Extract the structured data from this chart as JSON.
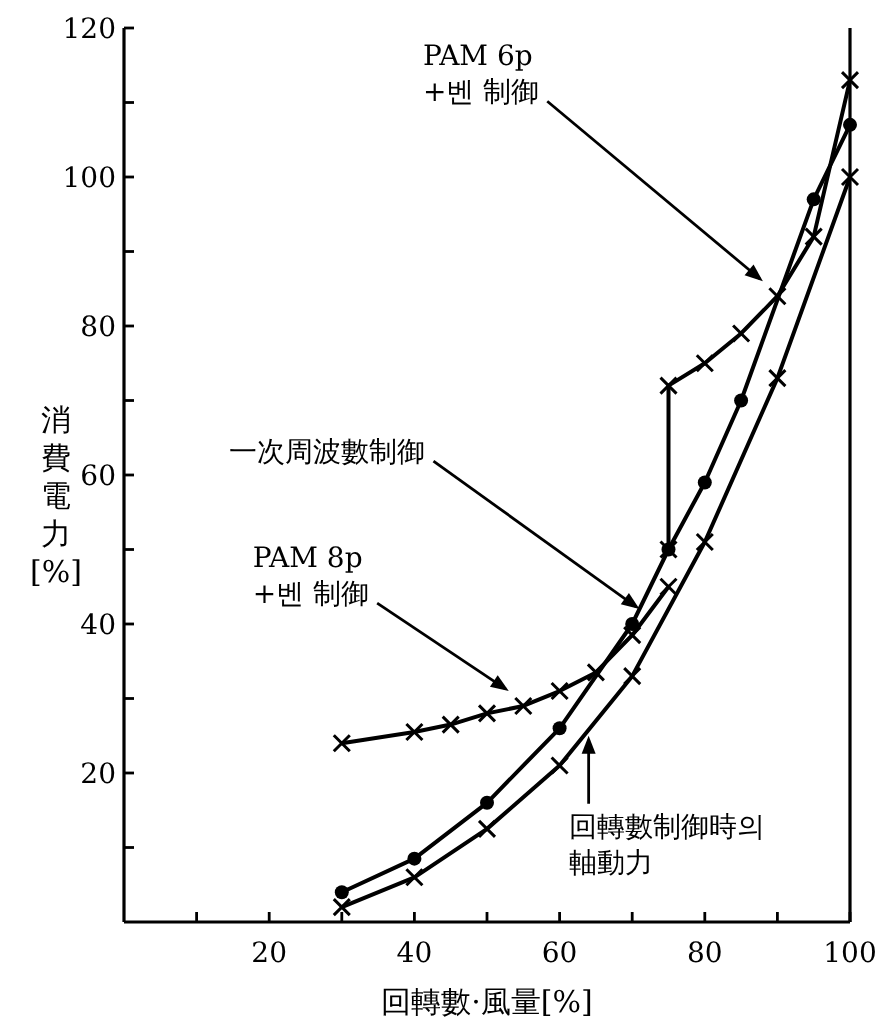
{
  "chart_data": {
    "type": "line",
    "xlabel": "回轉數·風量[%]",
    "ylabel": "消費電力[%]",
    "xlim": [
      0,
      100
    ],
    "ylim": [
      0,
      120
    ],
    "xticks": [
      {
        "value": 10,
        "label": null
      },
      20,
      {
        "value": 30,
        "label": null
      },
      40,
      {
        "value": 50,
        "label": null
      },
      60,
      {
        "value": 70,
        "label": null
      },
      80,
      {
        "value": 90,
        "label": null
      },
      100
    ],
    "yticks": [
      {
        "value": 10,
        "label": null
      },
      20,
      {
        "value": 30,
        "label": null
      },
      40,
      {
        "value": 50,
        "label": null
      },
      60,
      {
        "value": 70,
        "label": null
      },
      80,
      {
        "value": 90,
        "label": null
      },
      100,
      {
        "value": 110,
        "label": null
      },
      120
    ],
    "grid": false,
    "series": [
      {
        "color": "#000000",
        "marker": "cross",
        "x": [
          75,
          75,
          80,
          85,
          90,
          95,
          100
        ],
        "values": [
          50,
          72,
          75,
          79,
          84,
          92,
          113
        ]
      },
      {
        "color": "#000000",
        "marker": "cross",
        "x": [
          30,
          40,
          45,
          50,
          55,
          60,
          65,
          70,
          75
        ],
        "values": [
          24,
          25.5,
          26.5,
          28,
          29,
          31,
          33.5,
          38.5,
          45
        ]
      },
      {
        "color": "#000000",
        "marker": "circle",
        "x": [
          30,
          40,
          50,
          60,
          70,
          75,
          80,
          85,
          95,
          100
        ],
        "values": [
          4,
          8.5,
          16,
          26,
          40,
          50,
          59,
          70,
          97,
          107
        ]
      },
      {
        "color": "#000000",
        "marker": "cross",
        "x": [
          30,
          40,
          50,
          60,
          70,
          80,
          90,
          100
        ],
        "values": [
          2,
          6,
          12.5,
          21,
          33,
          51,
          73,
          100
        ]
      }
    ],
    "annotations": [
      {
        "text": "PAM 6p\n+벤 制御",
        "x": 88,
        "y": 86
      },
      {
        "text": "一次周波數制御",
        "x": 71,
        "y": 42
      },
      {
        "text": "PAM 8p\n+벤 制御",
        "x": 53,
        "y": 31
      },
      {
        "text": "回轉數制御時의\n軸動力",
        "x": 64,
        "y": 25
      }
    ]
  }
}
